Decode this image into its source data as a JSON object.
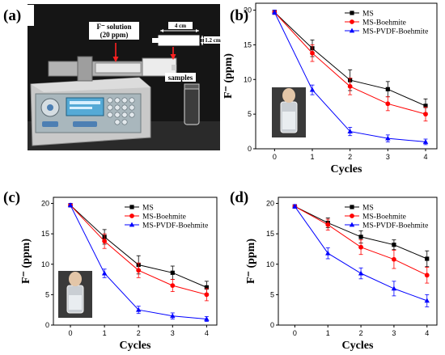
{
  "panels": {
    "a": {
      "label": "(a)"
    },
    "b": {
      "label": "(b)"
    },
    "c": {
      "label": "(c)"
    },
    "d": {
      "label": "(d)"
    }
  },
  "photo": {
    "solution_label": "F⁻ solution",
    "concentration_label": "(20 ppm)",
    "length_label": "4 cm",
    "height_label": "1.2 cm",
    "samples_label": "samples"
  },
  "colors": {
    "MS": "#000000",
    "MS-Boehmite": "#ff0000",
    "MS-PVDF-Boehmite": "#0000ff"
  },
  "chart_data": [
    {
      "panel": "(b)",
      "type": "line",
      "xlabel": "Cycles",
      "ylabel": "F⁻ (ppm)",
      "x": [
        0,
        1,
        2,
        3,
        4
      ],
      "xlim": [
        -0.5,
        4.3
      ],
      "ylim": [
        0,
        21
      ],
      "yticks": [
        0,
        5,
        10,
        15,
        20
      ],
      "legend_position": "top-right",
      "inset_photo": true,
      "series": [
        {
          "name": "MS",
          "marker": "square",
          "values": [
            19.7,
            14.5,
            9.9,
            8.6,
            6.2
          ],
          "errors": [
            0.3,
            1.2,
            1.5,
            1.1,
            1.0
          ]
        },
        {
          "name": "MS-Boehmite",
          "marker": "circle",
          "values": [
            19.7,
            13.8,
            9.0,
            6.5,
            5.0
          ],
          "errors": [
            0.3,
            1.2,
            1.2,
            1.0,
            1.0
          ]
        },
        {
          "name": "MS-PVDF-Boehmite",
          "marker": "triangle",
          "values": [
            19.7,
            8.5,
            2.5,
            1.5,
            1.0
          ],
          "errors": [
            0.3,
            0.7,
            0.6,
            0.5,
            0.4
          ]
        }
      ]
    },
    {
      "panel": "(c)",
      "type": "line",
      "xlabel": "Cycles",
      "ylabel": "F⁻ (ppm)",
      "x": [
        0,
        1,
        2,
        3,
        4
      ],
      "xlim": [
        -0.5,
        4.3
      ],
      "ylim": [
        0,
        21
      ],
      "yticks": [
        0,
        5,
        10,
        15,
        20
      ],
      "legend_position": "top-right",
      "inset_photo": true,
      "series": [
        {
          "name": "MS",
          "marker": "square",
          "values": [
            19.7,
            14.5,
            9.9,
            8.6,
            6.2
          ],
          "errors": [
            0.3,
            1.2,
            1.5,
            1.1,
            1.0
          ]
        },
        {
          "name": "MS-Boehmite",
          "marker": "circle",
          "values": [
            19.7,
            13.8,
            9.0,
            6.5,
            5.0
          ],
          "errors": [
            0.3,
            1.2,
            1.2,
            1.0,
            1.0
          ]
        },
        {
          "name": "MS-PVDF-Boehmite",
          "marker": "triangle",
          "values": [
            19.7,
            8.5,
            2.5,
            1.5,
            1.0
          ],
          "errors": [
            0.3,
            0.7,
            0.6,
            0.5,
            0.4
          ]
        }
      ]
    },
    {
      "panel": "(d)",
      "type": "line",
      "xlabel": "Cycles",
      "ylabel": "F⁻ (ppm)",
      "x": [
        0,
        1,
        2,
        3,
        4
      ],
      "xlim": [
        -0.5,
        4.3
      ],
      "ylim": [
        0,
        21
      ],
      "yticks": [
        0,
        5,
        10,
        15,
        20
      ],
      "legend_position": "top-right",
      "inset_photo": false,
      "series": [
        {
          "name": "MS",
          "marker": "square",
          "values": [
            19.5,
            16.8,
            14.5,
            13.2,
            10.9
          ],
          "errors": [
            0.3,
            0.8,
            1.0,
            0.8,
            1.3
          ]
        },
        {
          "name": "MS-Boehmite",
          "marker": "circle",
          "values": [
            19.5,
            16.5,
            12.8,
            10.8,
            8.2
          ],
          "errors": [
            0.3,
            0.9,
            1.2,
            1.5,
            1.3
          ]
        },
        {
          "name": "MS-PVDF-Boehmite",
          "marker": "triangle",
          "values": [
            19.5,
            11.8,
            8.5,
            6.0,
            4.0
          ],
          "errors": [
            0.3,
            0.9,
            0.9,
            1.2,
            1.0
          ]
        }
      ]
    }
  ]
}
